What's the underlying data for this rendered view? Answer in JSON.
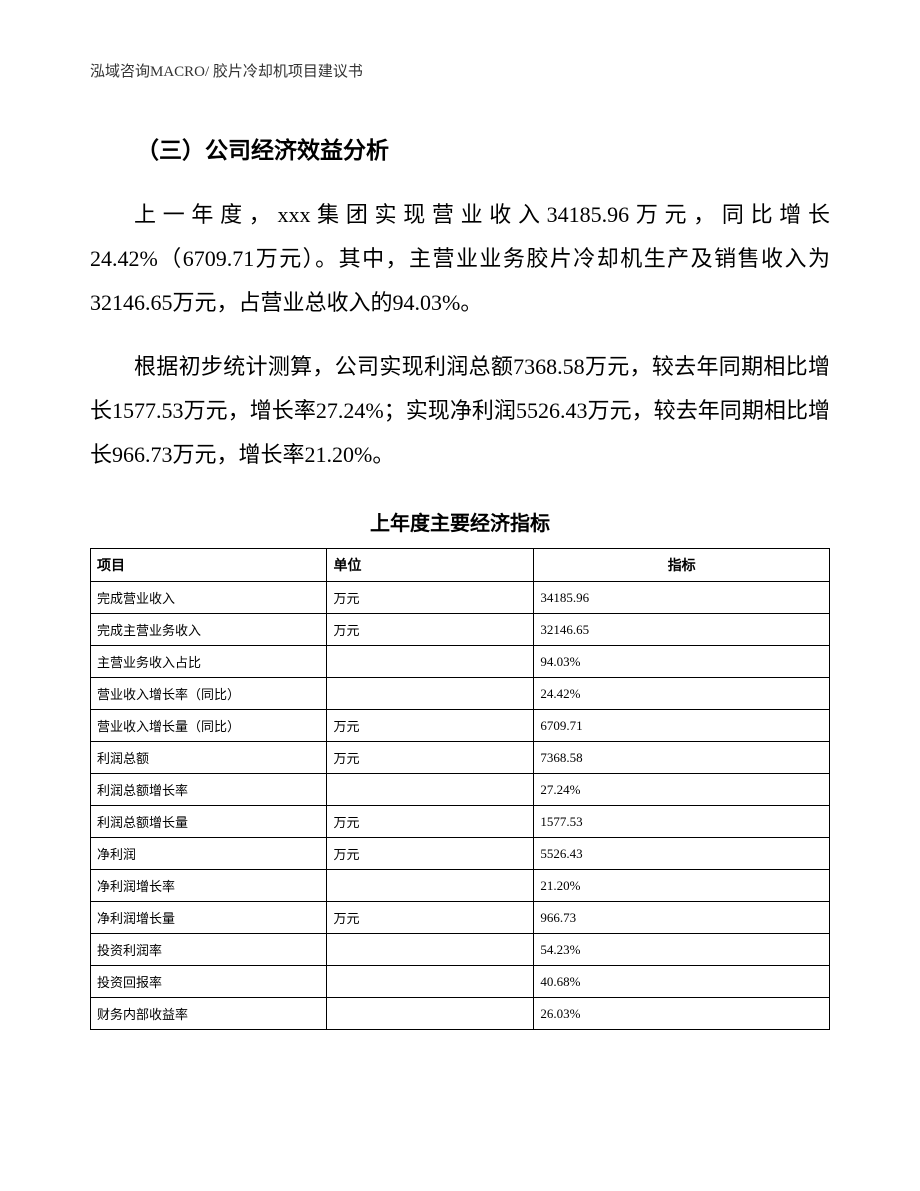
{
  "header": "泓域咨询MACRO/    胶片冷却机项目建议书",
  "section_title": "（三）公司经济效益分析",
  "paragraph1": "上一年度，xxx集团实现营业收入34185.96万元，同比增长24.42%（6709.71万元）。其中，主营业业务胶片冷却机生产及销售收入为32146.65万元，占营业总收入的94.03%。",
  "paragraph2": "根据初步统计测算，公司实现利润总额7368.58万元，较去年同期相比增长1577.53万元，增长率27.24%；实现净利润5526.43万元，较去年同期相比增长966.73万元，增长率21.20%。",
  "table_title": "上年度主要经济指标",
  "table": {
    "columns": [
      "项目",
      "单位",
      "指标"
    ],
    "rows": [
      [
        "完成营业收入",
        "万元",
        "34185.96"
      ],
      [
        "完成主营业务收入",
        "万元",
        "32146.65"
      ],
      [
        "主营业务收入占比",
        "",
        "94.03%"
      ],
      [
        "营业收入增长率（同比）",
        "",
        "24.42%"
      ],
      [
        "营业收入增长量（同比）",
        "万元",
        "6709.71"
      ],
      [
        "利润总额",
        "万元",
        "7368.58"
      ],
      [
        "利润总额增长率",
        "",
        "27.24%"
      ],
      [
        "利润总额增长量",
        "万元",
        "1577.53"
      ],
      [
        "净利润",
        "万元",
        "5526.43"
      ],
      [
        "净利润增长率",
        "",
        "21.20%"
      ],
      [
        "净利润增长量",
        "万元",
        "966.73"
      ],
      [
        "投资利润率",
        "",
        "54.23%"
      ],
      [
        "投资回报率",
        "",
        "40.68%"
      ],
      [
        "财务内部收益率",
        "",
        "26.03%"
      ]
    ]
  }
}
